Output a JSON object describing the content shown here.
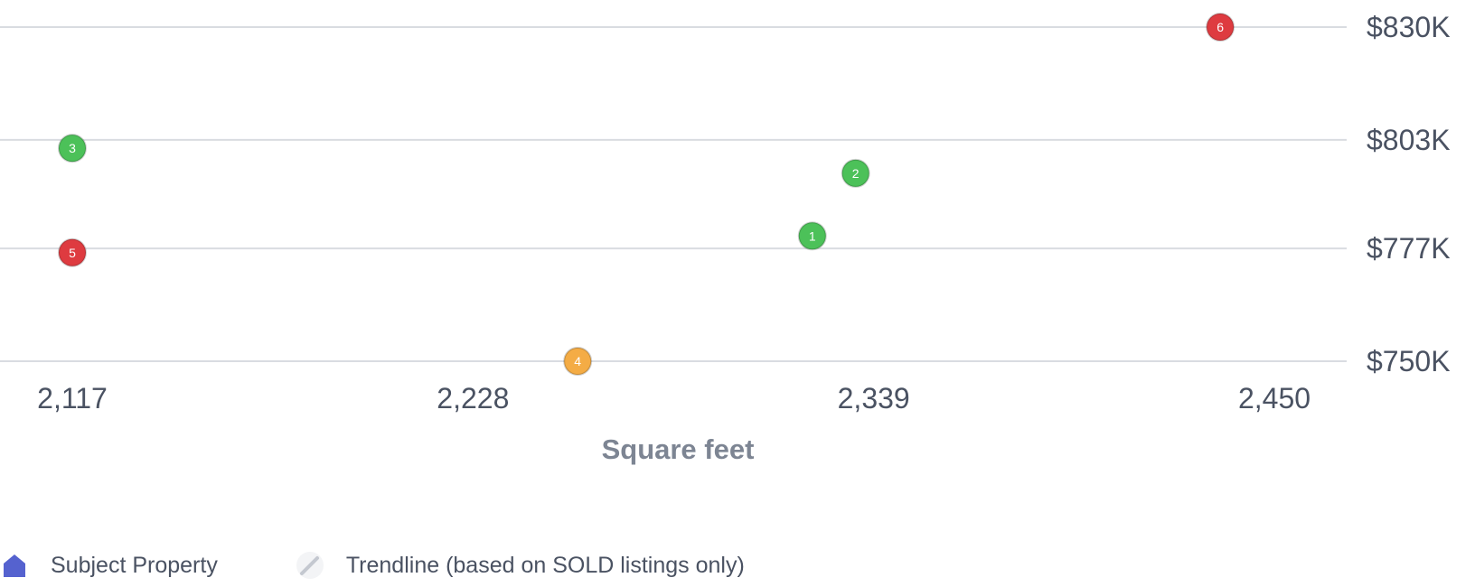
{
  "chart_data": {
    "type": "scatter",
    "xlabel": "Square feet",
    "ylabel": "",
    "xlim": [
      2117,
      2450
    ],
    "ylim": [
      750,
      830
    ],
    "x_ticks": [
      2117,
      2228,
      2339,
      2450
    ],
    "x_tick_labels": [
      "2,117",
      "2,228",
      "2,339",
      "2,450"
    ],
    "y_ticks": [
      830,
      803,
      777,
      750
    ],
    "y_tick_labels": [
      "$830K",
      "$803K",
      "$777K",
      "$750K"
    ],
    "y_axis_position": "right",
    "grid": true,
    "points": [
      {
        "label": "1",
        "x": 2322,
        "y": 780,
        "status": "sold"
      },
      {
        "label": "2",
        "x": 2334,
        "y": 795,
        "status": "sold"
      },
      {
        "label": "3",
        "x": 2117,
        "y": 801,
        "status": "sold"
      },
      {
        "label": "4",
        "x": 2257,
        "y": 750,
        "status": "pending"
      },
      {
        "label": "5",
        "x": 2117,
        "y": 776,
        "status": "off-market"
      },
      {
        "label": "6",
        "x": 2435,
        "y": 830,
        "status": "off-market"
      }
    ],
    "status_colors": {
      "sold": "#4cc159",
      "pending": "#f4ac45",
      "off-market": "#de3b40"
    },
    "legend": {
      "position": "bottom-left",
      "items": [
        {
          "label": "Subject Property",
          "icon": "house-icon",
          "color": "#5562cf"
        },
        {
          "label": "Trendline (based on SOLD listings only)",
          "icon": "trendline-icon",
          "color": "#c4c8d0"
        }
      ]
    }
  }
}
